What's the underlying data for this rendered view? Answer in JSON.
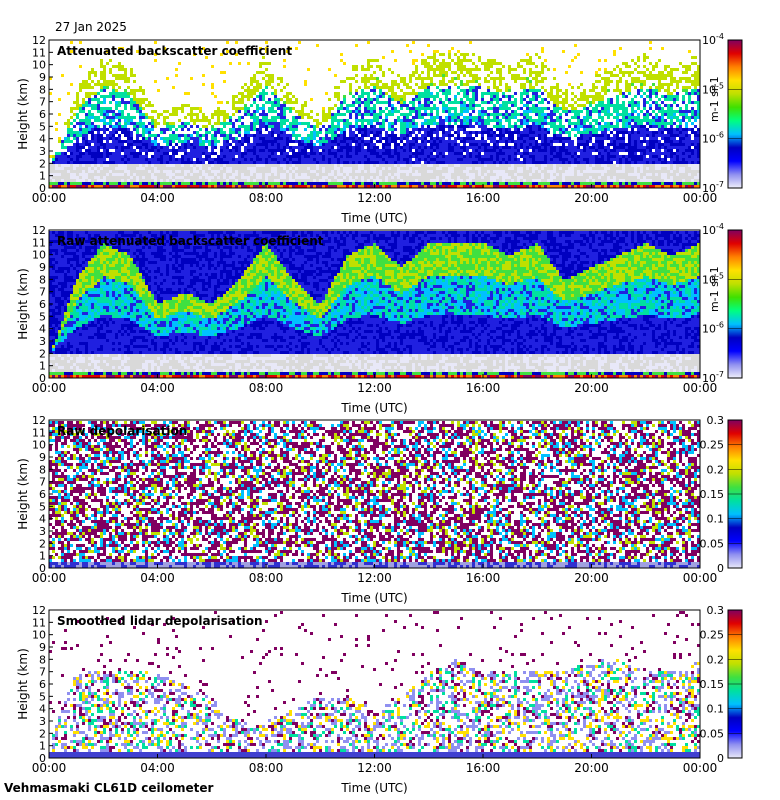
{
  "date": "27 Jan 2025",
  "station": "Vehmasmaki CL61D ceilometer",
  "x_ticks": [
    "00:00",
    "04:00",
    "08:00",
    "12:00",
    "16:00",
    "20:00",
    "00:00"
  ],
  "xlabel": "Time (UTC)",
  "ylabel": "Height (km)",
  "y_ticks": [
    "0",
    "1",
    "2",
    "3",
    "4",
    "5",
    "6",
    "7",
    "8",
    "9",
    "10",
    "11",
    "12"
  ],
  "colors": {
    "no_data": "#ffffff",
    "low_signal": "#d9d9d9",
    "colormap": [
      "#e8e8f8",
      "#9090f0",
      "#2020e0",
      "#0000c0",
      "#00c0ff",
      "#00e0a0",
      "#40e040",
      "#c0e000",
      "#ffe000",
      "#ff8000",
      "#e00000",
      "#800060"
    ]
  },
  "chart_data": [
    {
      "type": "heatmap",
      "title": "Attenuated backscatter coefficient",
      "xlabel": "Time (UTC)",
      "ylabel": "Height (km)",
      "xlim": [
        0,
        24
      ],
      "ylim": [
        0,
        12
      ],
      "colorbar": {
        "scale": "log",
        "range": [
          1e-07,
          0.0001
        ],
        "ticks": [
          "10^-7",
          "10^-6",
          "10^-5",
          "10^-4"
        ],
        "label": "m-1 sr-1"
      },
      "cloud_top_km": [
        1.5,
        8,
        11,
        10,
        6,
        7,
        6,
        8,
        11,
        8,
        6,
        10,
        11,
        9,
        11,
        11,
        11,
        10,
        11,
        8,
        9,
        10,
        11,
        10,
        11
      ],
      "style": "backscatter"
    },
    {
      "type": "heatmap",
      "title": "Raw attenuated backscatter coefficient",
      "xlabel": "Time (UTC)",
      "ylabel": "Height (km)",
      "xlim": [
        0,
        24
      ],
      "ylim": [
        0,
        12
      ],
      "colorbar": {
        "scale": "log",
        "range": [
          1e-07,
          0.0001
        ],
        "ticks": [
          "10^-7",
          "10^-6",
          "10^-5",
          "10^-4"
        ],
        "label": "m-1 sr-1"
      },
      "cloud_top_km": [
        1.5,
        8,
        11,
        10,
        6,
        7,
        6,
        8,
        11,
        8,
        6,
        10,
        11,
        9,
        11,
        11,
        11,
        10,
        11,
        8,
        9,
        10,
        11,
        10,
        11
      ],
      "style": "raw_backscatter"
    },
    {
      "type": "heatmap",
      "title": "Raw depolarisation",
      "xlabel": "Time (UTC)",
      "ylabel": "Height (km)",
      "xlim": [
        0,
        24
      ],
      "ylim": [
        0,
        12
      ],
      "colorbar": {
        "scale": "linear",
        "range": [
          0,
          0.3
        ],
        "ticks": [
          "0",
          "0.05",
          "0.1",
          "0.15",
          "0.2",
          "0.25",
          "0.3"
        ]
      },
      "style": "raw_depol"
    },
    {
      "type": "heatmap",
      "title": "Smoothed lidar depolarisation",
      "xlabel": "Time (UTC)",
      "ylabel": "Height (km)",
      "xlim": [
        0,
        24
      ],
      "ylim": [
        0,
        12
      ],
      "colorbar": {
        "scale": "linear",
        "range": [
          0,
          0.3
        ],
        "ticks": [
          "0",
          "0.05",
          "0.1",
          "0.15",
          "0.2",
          "0.25",
          "0.3"
        ]
      },
      "cloud_top_km": [
        1,
        7,
        7,
        7,
        7,
        6,
        5,
        3,
        3,
        4,
        5,
        5,
        4,
        5,
        7,
        8,
        7,
        7,
        7,
        7,
        8,
        8,
        7,
        7,
        8
      ],
      "style": "smooth_depol"
    }
  ]
}
